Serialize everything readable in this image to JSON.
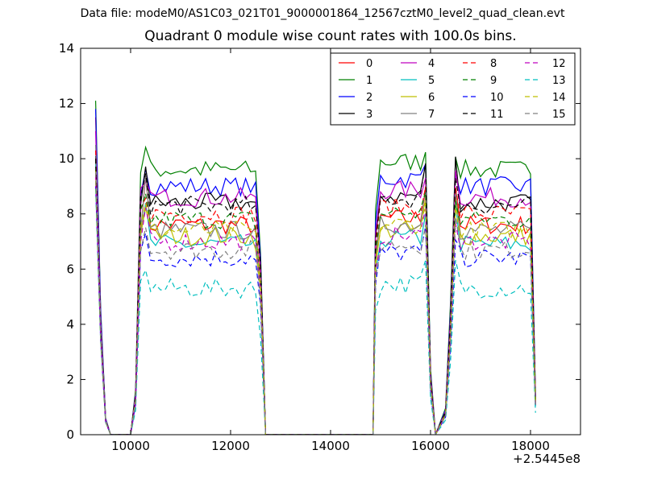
{
  "figure": {
    "suptitle": "Data file: modeM0/AS1C03_021T01_9000001864_12567cztM0_level2_quad_clean.evt",
    "title": "Quadrant 0 module wise count rates with 100.0s bins.",
    "x_offset_label": "+2.5445e8"
  },
  "chart_data": {
    "type": "line",
    "title": "Quadrant 0 module wise count rates with 100.0s bins.",
    "xlabel": "",
    "ylabel": "",
    "xlim": [
      9000,
      19000
    ],
    "ylim": [
      0,
      14
    ],
    "x_offset": 254450000,
    "xticks": [
      10000,
      12000,
      14000,
      16000,
      18000
    ],
    "yticks": [
      0,
      2,
      4,
      6,
      8,
      10,
      12,
      14
    ],
    "grid": false,
    "legend": {
      "placement": "top-right",
      "columns": 4
    },
    "segments": [
      {
        "start": 9300,
        "end": 12700
      },
      {
        "start": 14850,
        "end": 16000
      },
      {
        "start": 16500,
        "end": 18100
      }
    ],
    "series": [
      {
        "name": "0",
        "color": "#ff0000",
        "style": "solid",
        "peak": 11.5,
        "level": 7.6,
        "edge_high": 9.1
      },
      {
        "name": "1",
        "color": "#008000",
        "style": "solid",
        "peak": 12.1,
        "level": 9.6,
        "edge_high": 10.3
      },
      {
        "name": "2",
        "color": "#0000ff",
        "style": "solid",
        "peak": 11.8,
        "level": 9.0,
        "edge_high": 9.8
      },
      {
        "name": "3",
        "color": "#000000",
        "style": "solid",
        "peak": 10.1,
        "level": 8.4,
        "edge_high": 9.9
      },
      {
        "name": "4",
        "color": "#bf00bf",
        "style": "solid",
        "peak": 11.0,
        "level": 8.6,
        "edge_high": 9.5
      },
      {
        "name": "5",
        "color": "#00bfbf",
        "style": "solid",
        "peak": 9.8,
        "level": 6.9,
        "edge_high": 8.2
      },
      {
        "name": "6",
        "color": "#bfbf00",
        "style": "solid",
        "peak": 9.6,
        "level": 7.2,
        "edge_high": 8.4
      },
      {
        "name": "7",
        "color": "#808080",
        "style": "solid",
        "peak": 10.5,
        "level": 7.4,
        "edge_high": 9.2
      },
      {
        "name": "8",
        "color": "#ff0000",
        "style": "dashed",
        "peak": 10.3,
        "level": 8.0,
        "edge_high": 8.8
      },
      {
        "name": "9",
        "color": "#008000",
        "style": "dashed",
        "peak": 10.0,
        "level": 7.8,
        "edge_high": 8.6
      },
      {
        "name": "10",
        "color": "#0000ff",
        "style": "dashed",
        "peak": 9.0,
        "level": 6.4,
        "edge_high": 7.2
      },
      {
        "name": "11",
        "color": "#000000",
        "style": "dashed",
        "peak": 10.0,
        "level": 8.3,
        "edge_high": 9.6
      },
      {
        "name": "12",
        "color": "#bf00bf",
        "style": "dashed",
        "peak": 9.4,
        "level": 7.0,
        "edge_high": 8.0
      },
      {
        "name": "13",
        "color": "#00bfbf",
        "style": "dashed",
        "peak": 8.9,
        "level": 5.3,
        "edge_high": 6.2
      },
      {
        "name": "14",
        "color": "#bfbf00",
        "style": "dashed",
        "peak": 9.2,
        "level": 7.4,
        "edge_high": 8.2
      },
      {
        "name": "15",
        "color": "#808080",
        "style": "dashed",
        "peak": 9.5,
        "level": 6.7,
        "edge_high": 7.8
      }
    ]
  }
}
